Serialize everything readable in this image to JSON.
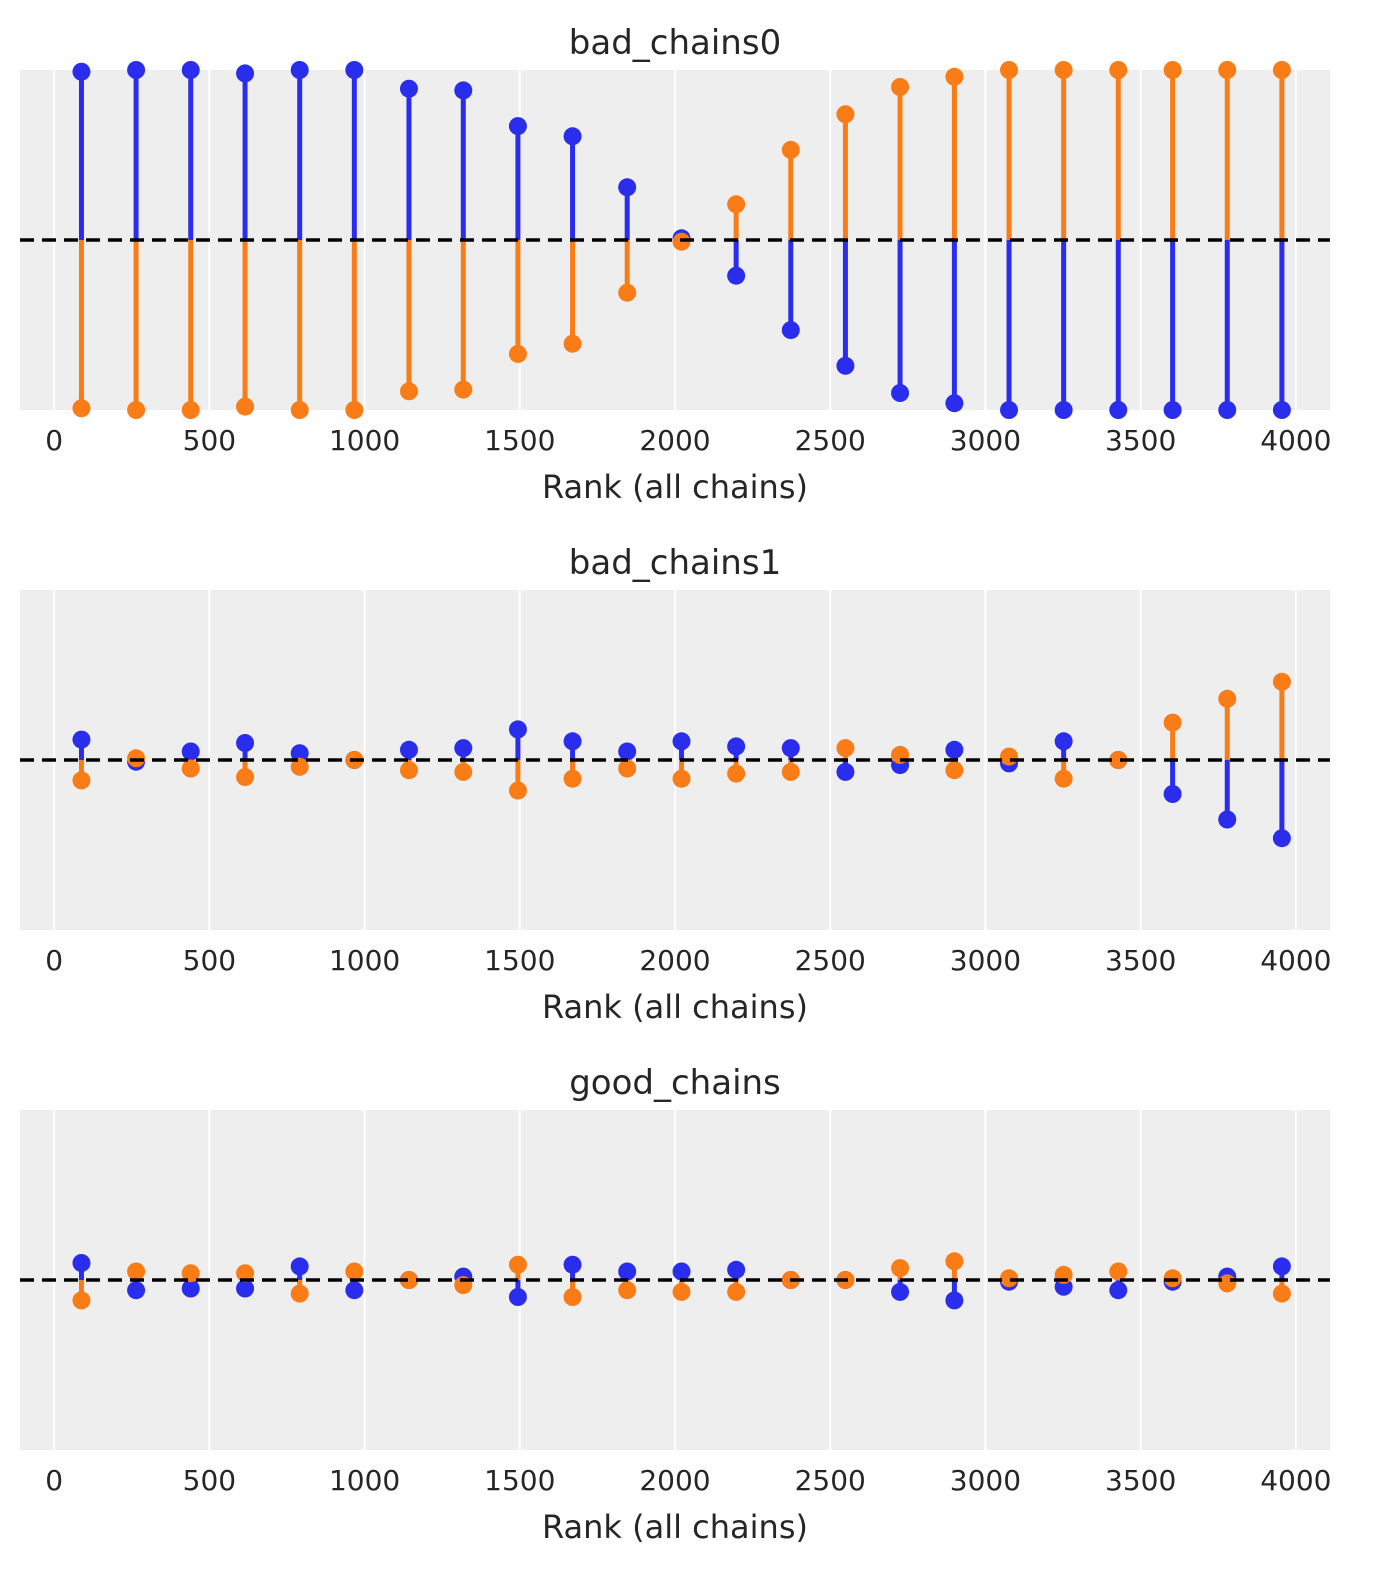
{
  "colors": {
    "chain_0": "#2a2eec",
    "chain_1": "#fa7c17",
    "reference": "#000000",
    "panel_bg": "#eeeeee",
    "grid": "#ffffff"
  },
  "chart_data": [
    {
      "type": "lollipop",
      "title": "bad_chains0",
      "xlabel": "Rank (all chains)",
      "ylabel": "",
      "xlim": [
        -110,
        4110
      ],
      "ylim": [
        -1.0,
        1.0
      ],
      "xticks": [
        0,
        500,
        1000,
        1500,
        2000,
        2500,
        3000,
        3500,
        4000
      ],
      "grid": true,
      "reference_line": 0,
      "x": [
        88,
        264,
        440,
        615,
        791,
        967,
        1143,
        1318,
        1494,
        1670,
        1846,
        2021,
        2197,
        2373,
        2549,
        2725,
        2900,
        3076,
        3252,
        3428,
        3603,
        3779,
        3955
      ],
      "series": [
        {
          "values": [
            0.99,
            1.0,
            1.0,
            0.98,
            1.0,
            1.0,
            0.89,
            0.88,
            0.67,
            0.61,
            0.31,
            0.01,
            -0.21,
            -0.53,
            -0.74,
            -0.9,
            -0.96,
            -1.0,
            -1.0,
            -1.0,
            -1.0,
            -1.0,
            -1.0
          ]
        },
        {
          "values": [
            -0.99,
            -1.0,
            -1.0,
            -0.98,
            -1.0,
            -1.0,
            -0.89,
            -0.88,
            -0.67,
            -0.61,
            -0.31,
            -0.01,
            0.21,
            0.53,
            0.74,
            0.9,
            0.96,
            1.0,
            1.0,
            1.0,
            1.0,
            1.0,
            1.0
          ]
        }
      ]
    },
    {
      "type": "lollipop",
      "title": "bad_chains1",
      "xlabel": "Rank (all chains)",
      "ylabel": "",
      "xlim": [
        -110,
        4110
      ],
      "ylim": [
        -1.0,
        1.0
      ],
      "xticks": [
        0,
        500,
        1000,
        1500,
        2000,
        2500,
        3000,
        3500,
        4000
      ],
      "grid": true,
      "reference_line": 0,
      "x": [
        88,
        264,
        440,
        615,
        791,
        967,
        1143,
        1318,
        1494,
        1670,
        1846,
        2021,
        2197,
        2373,
        2549,
        2725,
        2900,
        3076,
        3252,
        3428,
        3603,
        3779,
        3955
      ],
      "series": [
        {
          "values": [
            0.12,
            -0.01,
            0.05,
            0.1,
            0.04,
            0.0,
            0.06,
            0.07,
            0.18,
            0.11,
            0.05,
            0.11,
            0.08,
            0.07,
            -0.07,
            -0.03,
            0.06,
            -0.02,
            0.11,
            0.0,
            -0.2,
            -0.35,
            -0.46
          ]
        },
        {
          "values": [
            -0.12,
            0.01,
            -0.05,
            -0.1,
            -0.04,
            0.0,
            -0.06,
            -0.07,
            -0.18,
            -0.11,
            -0.05,
            -0.11,
            -0.08,
            -0.07,
            0.07,
            0.03,
            -0.06,
            0.02,
            -0.11,
            0.0,
            0.22,
            0.36,
            0.46
          ]
        }
      ]
    },
    {
      "type": "lollipop",
      "title": "good_chains",
      "xlabel": "Rank (all chains)",
      "ylabel": "",
      "xlim": [
        -110,
        4110
      ],
      "ylim": [
        -1.0,
        1.0
      ],
      "xticks": [
        0,
        500,
        1000,
        1500,
        2000,
        2500,
        3000,
        3500,
        4000
      ],
      "grid": true,
      "reference_line": 0,
      "x": [
        88,
        264,
        440,
        615,
        791,
        967,
        1143,
        1318,
        1494,
        1670,
        1846,
        2021,
        2197,
        2373,
        2549,
        2725,
        2900,
        3076,
        3252,
        3428,
        3603,
        3779,
        3955
      ],
      "series": [
        {
          "values": [
            0.1,
            -0.06,
            -0.05,
            -0.05,
            0.08,
            -0.06,
            0.0,
            0.02,
            -0.1,
            0.09,
            0.05,
            0.05,
            0.06,
            0.0,
            0.0,
            -0.07,
            -0.12,
            -0.01,
            -0.04,
            -0.06,
            -0.01,
            0.02,
            0.08
          ]
        },
        {
          "values": [
            -0.12,
            0.05,
            0.04,
            0.04,
            -0.08,
            0.05,
            0.0,
            -0.03,
            0.09,
            -0.1,
            -0.06,
            -0.07,
            -0.07,
            0.0,
            0.0,
            0.07,
            0.11,
            0.01,
            0.03,
            0.05,
            0.01,
            -0.02,
            -0.08
          ]
        }
      ]
    }
  ]
}
